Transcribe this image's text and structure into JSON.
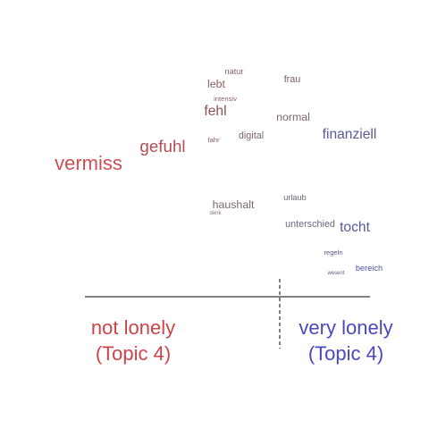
{
  "chart_data": {
    "type": "scatter",
    "description_free": true,
    "words": [
      {
        "word": "natur",
        "topic_position": 0.5,
        "frequency": 2,
        "color": "#8a6464"
      },
      {
        "word": "frau",
        "topic_position": 0.71,
        "frequency": 3,
        "color": "#7a5e68"
      },
      {
        "word": "lebt",
        "topic_position": 0.47,
        "frequency": 4,
        "color": "#8c5e62"
      },
      {
        "word": "intensiv",
        "topic_position": 0.48,
        "frequency": 1,
        "color": "#8a6464"
      },
      {
        "word": "fehl",
        "topic_position": 0.45,
        "frequency": 6,
        "color": "#8c4f55"
      },
      {
        "word": "normal",
        "topic_position": 0.72,
        "frequency": 4,
        "color": "#7a6670"
      },
      {
        "word": "finanziell",
        "topic_position": 0.92,
        "frequency": 6,
        "color": "#5a5a96"
      },
      {
        "word": "gefuhl",
        "topic_position": 0.3,
        "frequency": 8,
        "color": "#b04e52"
      },
      {
        "word": "fahr",
        "topic_position": 0.45,
        "frequency": 1,
        "color": "#8a6464"
      },
      {
        "word": "digital",
        "topic_position": 0.6,
        "frequency": 3,
        "color": "#7a6464"
      },
      {
        "word": "vermiss",
        "topic_position": 0.0,
        "frequency": 10,
        "color": "#cc4f54"
      },
      {
        "word": "haushalt",
        "topic_position": 0.49,
        "frequency": 4,
        "color": "#7a6a6a"
      },
      {
        "word": "urlaub",
        "topic_position": 0.71,
        "frequency": 2,
        "color": "#6a6a7a"
      },
      {
        "word": "denk",
        "topic_position": 0.45,
        "frequency": 0,
        "color": "#8a7070"
      },
      {
        "word": "unterschied",
        "topic_position": 0.78,
        "frequency": 3,
        "color": "#6a6a80"
      },
      {
        "word": "tocht",
        "topic_position": 0.93,
        "frequency": 6,
        "color": "#585a9a"
      },
      {
        "word": "regeln",
        "topic_position": 0.86,
        "frequency": 1,
        "color": "#5a5a90"
      },
      {
        "word": "wesent",
        "topic_position": 0.85,
        "frequency": 0,
        "color": "#5a5a90"
      },
      {
        "word": "bereich",
        "topic_position": 0.95,
        "frequency": 2,
        "color": "#4f52a0"
      }
    ],
    "scale_labels": {
      "left_line1": "not lonely",
      "left_line2": "(Topic 4)",
      "right_line1": "very lonely",
      "right_line2": "(Topic 4)"
    },
    "colors": {
      "left_label": "#cc4448",
      "right_label": "#4a48c0",
      "axis": "#000000"
    },
    "xlabel": "",
    "ylabel": ""
  }
}
